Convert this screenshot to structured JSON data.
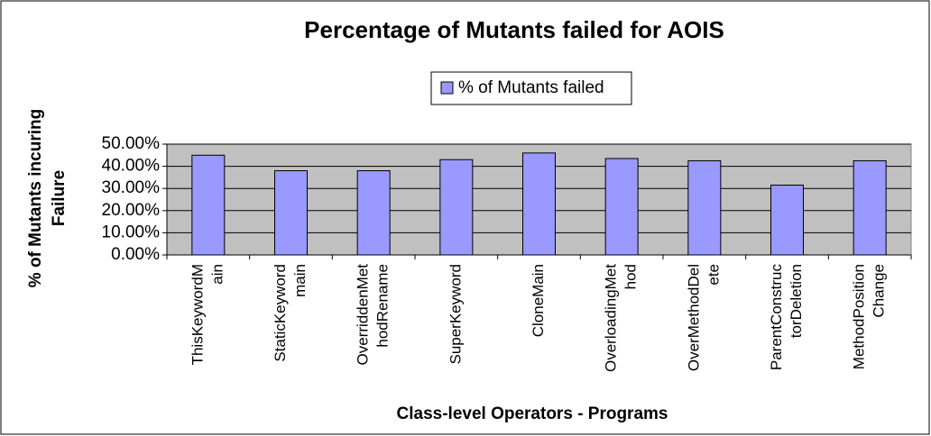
{
  "chart_data": {
    "type": "bar",
    "title": "Percentage of Mutants failed for AOIS",
    "xlabel": "Class-level Operators - Programs",
    "ylabel": [
      "% of Mutants incuring",
      "Failure"
    ],
    "categories": [
      [
        "ThisKeywordM",
        "ain"
      ],
      [
        "StaticKeyword",
        "main"
      ],
      [
        "OverriddenMet",
        "hodRename"
      ],
      [
        "SuperKeyword"
      ],
      [
        "CloneMain"
      ],
      [
        "OverloadingMet",
        "hod"
      ],
      [
        "OverMethodDel",
        "ete"
      ],
      [
        "ParentConstruc",
        "torDeletion"
      ],
      [
        "MethodPosition",
        "Change"
      ]
    ],
    "series": [
      {
        "name": "% of Mutants failed",
        "color": "#9999ff",
        "values": [
          45,
          38,
          38,
          43,
          46,
          43.5,
          42.5,
          31.5,
          42.5
        ]
      }
    ],
    "ylim": [
      0,
      50
    ],
    "yticks": [
      {
        "value": 0,
        "label": "0.00%"
      },
      {
        "value": 10,
        "label": "10.00%"
      },
      {
        "value": 20,
        "label": "20.00%"
      },
      {
        "value": 30,
        "label": "30.00%"
      },
      {
        "value": 40,
        "label": "40.00%"
      },
      {
        "value": 50,
        "label": "50.00%"
      }
    ],
    "grid": true,
    "plot_background": "#c0c0c0"
  }
}
